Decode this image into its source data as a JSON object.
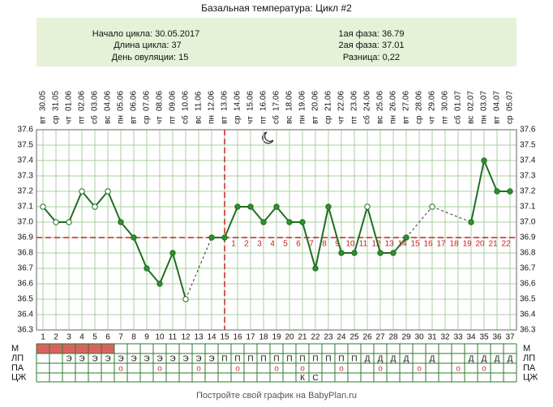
{
  "chart_data": {
    "type": "line",
    "title": "Базальная температура: Цикл #2",
    "info_left": [
      "Начало цикла: 30.05.2017",
      "Длина цикла: 37",
      "День овуляции: 15"
    ],
    "info_right": [
      "1ая фаза: 36.79",
      "2ая фаза: 37.01",
      "Разница: 0,22"
    ],
    "footer": "Постройте свой график на BabyPlan.ru",
    "x": [
      1,
      2,
      3,
      4,
      5,
      6,
      7,
      8,
      9,
      10,
      11,
      12,
      13,
      14,
      15,
      16,
      17,
      18,
      19,
      20,
      21,
      22,
      23,
      24,
      25,
      26,
      27,
      28,
      29,
      30,
      31,
      32,
      33,
      34,
      35,
      36,
      37
    ],
    "xlim": [
      0.5,
      37.5
    ],
    "dates": [
      "30.05",
      "31.05",
      "01.06",
      "02.06",
      "03.06",
      "04.06",
      "05.06",
      "06.06",
      "07.06",
      "08.06",
      "09.06",
      "10.06",
      "11.06",
      "12.06",
      "13.06",
      "14.06",
      "15.06",
      "16.06",
      "17.06",
      "18.06",
      "19.06",
      "20.06",
      "21.06",
      "22.06",
      "23.06",
      "24.06",
      "25.06",
      "26.06",
      "27.06",
      "28.06",
      "29.06",
      "30.06",
      "01.07",
      "02.07",
      "03.07",
      "04.07",
      "05.07"
    ],
    "weekdays": [
      "вт",
      "ср",
      "чт",
      "пт",
      "сб",
      "вс",
      "пн",
      "вт",
      "ср",
      "чт",
      "пт",
      "сб",
      "вс",
      "пн",
      "вт",
      "ср",
      "чт",
      "пт",
      "сб",
      "вс",
      "пн",
      "вт",
      "ср",
      "чт",
      "пт",
      "сб",
      "вс",
      "пн",
      "вт",
      "ср",
      "чт",
      "пт",
      "сб",
      "вс",
      "пн",
      "вт",
      "ср"
    ],
    "series": [
      {
        "color": "#1f6e1f",
        "marker_color": "#2f8f2f",
        "values": [
          37.1,
          37.0,
          37.0,
          37.2,
          37.1,
          37.2,
          37.0,
          36.9,
          36.7,
          36.6,
          36.8,
          36.5,
          null,
          36.9,
          36.9,
          37.1,
          37.1,
          37.0,
          37.1,
          37.0,
          37.0,
          36.7,
          37.1,
          36.8,
          36.8,
          37.1,
          36.8,
          36.8,
          36.9,
          null,
          37.1,
          null,
          null,
          37.0,
          37.4,
          37.2,
          37.2
        ],
        "hollow": [
          true,
          true,
          true,
          true,
          true,
          true,
          false,
          false,
          false,
          false,
          false,
          true,
          false,
          false,
          false,
          false,
          false,
          false,
          false,
          false,
          false,
          false,
          false,
          false,
          false,
          true,
          false,
          false,
          false,
          false,
          true,
          false,
          false,
          false,
          false,
          false,
          false
        ]
      }
    ],
    "ylim": [
      36.3,
      37.6
    ],
    "yticks": [
      36.3,
      36.4,
      36.5,
      36.6,
      36.7,
      36.8,
      36.9,
      {
        "value": 37.0,
        "label": "37.0"
      },
      37.1,
      37.2,
      37.3,
      37.4,
      37.5,
      37.6
    ],
    "grid": true,
    "coverline": 36.9,
    "ovulation_day": 15,
    "reference_color": "#c8201e",
    "phase2_numbers": [
      null,
      null,
      null,
      null,
      null,
      null,
      null,
      null,
      null,
      null,
      null,
      null,
      null,
      null,
      null,
      1,
      2,
      3,
      4,
      5,
      6,
      7,
      8,
      9,
      10,
      11,
      12,
      13,
      14,
      15,
      16,
      17,
      18,
      19,
      20,
      21,
      22
    ],
    "rows": [
      {
        "label": "М",
        "filled_days": [
          1,
          2,
          3,
          4,
          5,
          6
        ],
        "color": "#d9625f"
      },
      {
        "label": "ЛП",
        "cells": [
          null,
          null,
          "Э",
          "Э",
          "Э",
          "Э",
          "Э",
          "Э",
          "Э",
          "Э",
          "Э",
          "Э",
          "Э",
          "Э",
          "П",
          "П",
          "П",
          "П",
          "П",
          "П",
          "П",
          "П",
          "П",
          "П",
          "П",
          "Д",
          "Д",
          "Д",
          "Д",
          null,
          "Д",
          null,
          null,
          "Д",
          "Д",
          "Д",
          "Д"
        ]
      },
      {
        "label": "ПА",
        "color": "#d0302c",
        "cells": [
          null,
          null,
          null,
          null,
          null,
          null,
          "o",
          null,
          null,
          "o",
          null,
          null,
          "o",
          null,
          null,
          "o",
          null,
          null,
          "o",
          null,
          "o",
          null,
          null,
          "o",
          null,
          null,
          "o",
          null,
          null,
          "o",
          null,
          null,
          "o",
          null,
          "o",
          null,
          null
        ]
      },
      {
        "label": "ЦЖ",
        "cells": [
          null,
          null,
          null,
          null,
          null,
          null,
          null,
          null,
          null,
          null,
          null,
          null,
          null,
          null,
          null,
          null,
          null,
          null,
          null,
          null,
          "К",
          "С",
          null,
          null,
          null,
          null,
          null,
          null,
          null,
          null,
          null,
          null,
          null,
          null,
          null,
          null,
          null
        ]
      }
    ]
  }
}
